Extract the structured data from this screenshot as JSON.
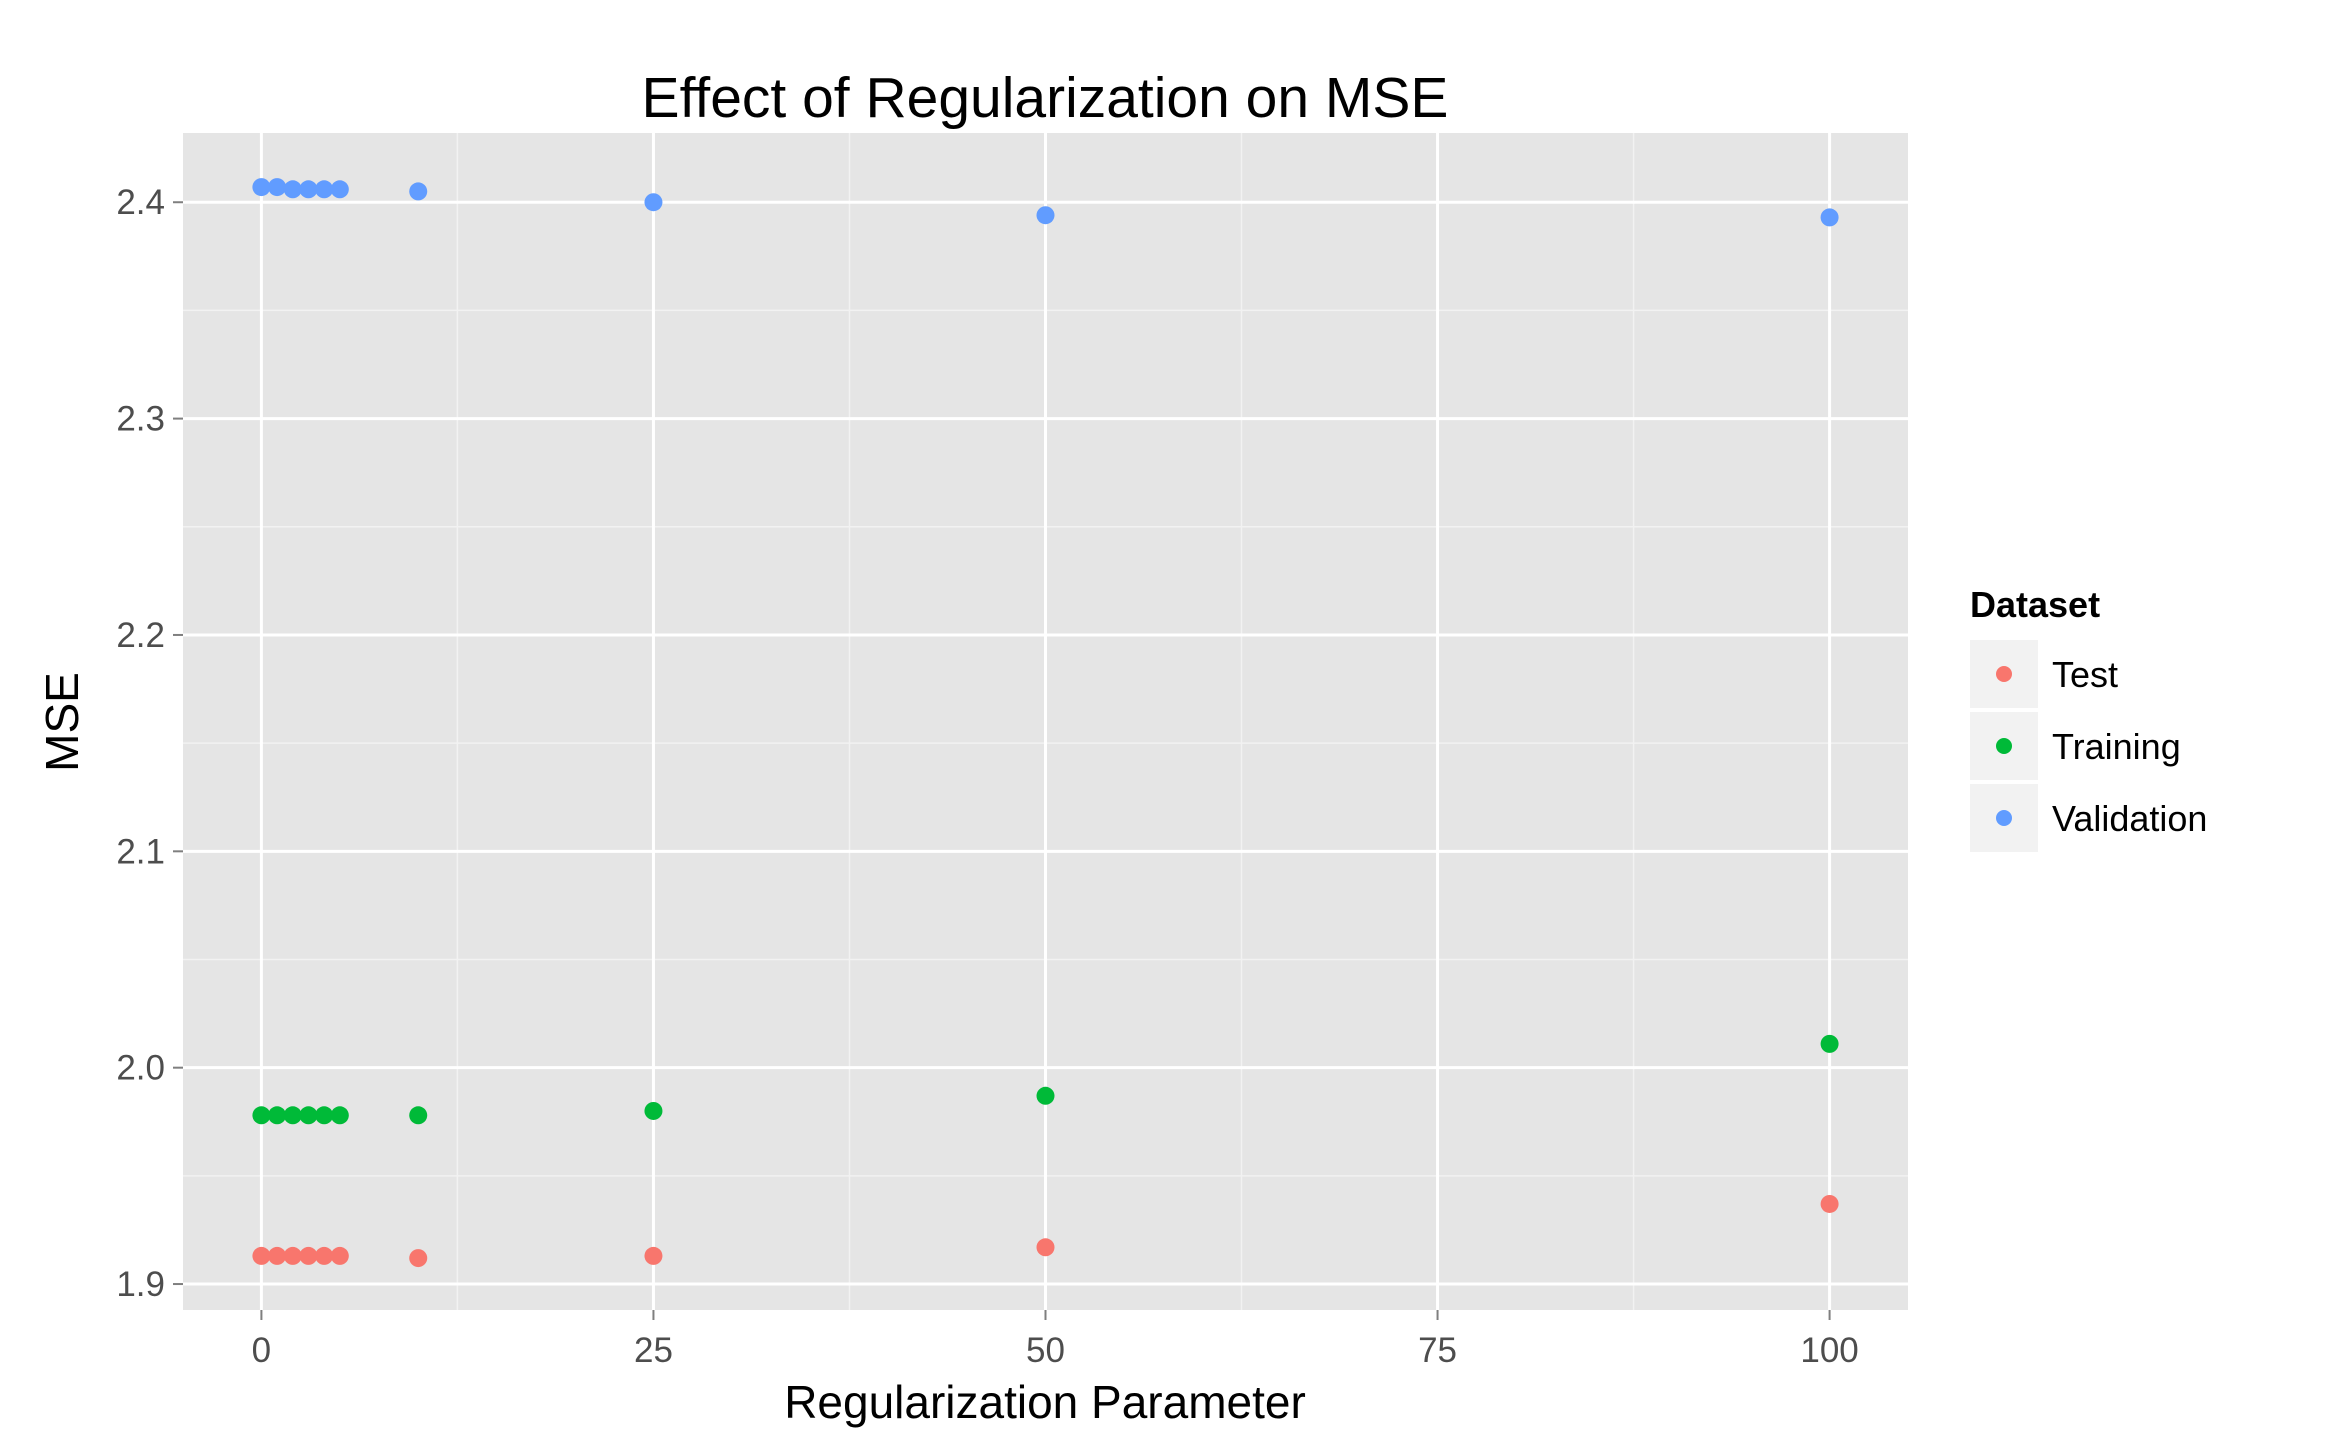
{
  "chart_data": {
    "type": "scatter",
    "title": "Effect of Regularization on MSE",
    "xlabel": "Regularization Parameter",
    "ylabel": "MSE",
    "xlim": [
      -5,
      105
    ],
    "ylim": [
      1.888,
      2.432
    ],
    "x_ticks": [
      0,
      25,
      50,
      75,
      100
    ],
    "x_tick_labels": [
      "0",
      "25",
      "50",
      "75",
      "100"
    ],
    "y_ticks": [
      1.9,
      2.0,
      2.1,
      2.2,
      2.3,
      2.4
    ],
    "y_tick_labels": [
      "1.9",
      "2.0",
      "2.1",
      "2.2",
      "2.3",
      "2.4"
    ],
    "grid": true,
    "legend_title": "Dataset",
    "legend_position": "right",
    "series": [
      {
        "name": "Test",
        "color": "#F8766D",
        "points": [
          [
            0,
            1.913
          ],
          [
            1,
            1.913
          ],
          [
            2,
            1.913
          ],
          [
            3,
            1.913
          ],
          [
            4,
            1.913
          ],
          [
            5,
            1.913
          ],
          [
            10,
            1.912
          ],
          [
            25,
            1.913
          ],
          [
            50,
            1.917
          ],
          [
            100,
            1.937
          ]
        ]
      },
      {
        "name": "Training",
        "color": "#00BA38",
        "points": [
          [
            0,
            1.978
          ],
          [
            1,
            1.978
          ],
          [
            2,
            1.978
          ],
          [
            3,
            1.978
          ],
          [
            4,
            1.978
          ],
          [
            5,
            1.978
          ],
          [
            10,
            1.978
          ],
          [
            25,
            1.98
          ],
          [
            50,
            1.987
          ],
          [
            100,
            2.011
          ]
        ]
      },
      {
        "name": "Validation",
        "color": "#619CFF",
        "points": [
          [
            0,
            2.407
          ],
          [
            1,
            2.407
          ],
          [
            2,
            2.406
          ],
          [
            3,
            2.406
          ],
          [
            4,
            2.406
          ],
          [
            5,
            2.406
          ],
          [
            10,
            2.405
          ],
          [
            25,
            2.4
          ],
          [
            50,
            2.394
          ],
          [
            100,
            2.393
          ]
        ]
      }
    ]
  }
}
